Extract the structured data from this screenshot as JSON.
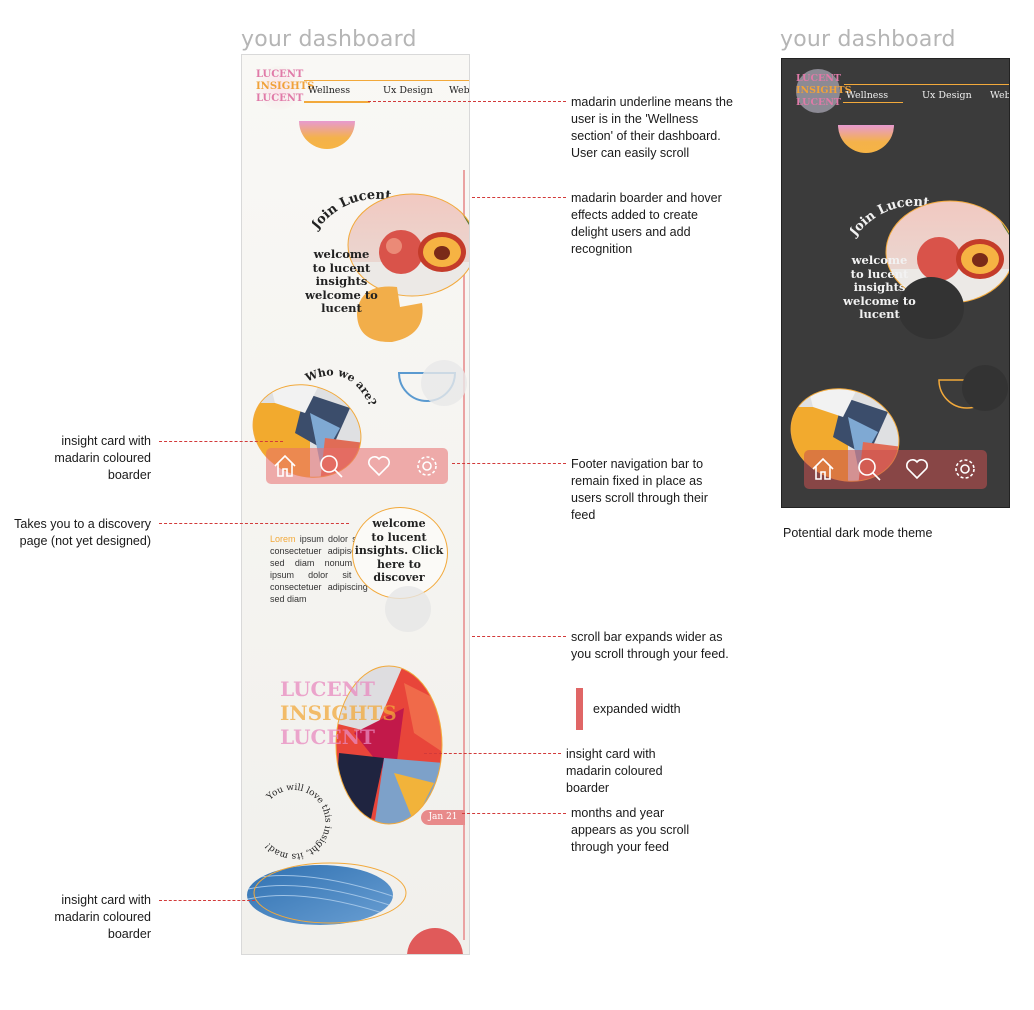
{
  "headings": {
    "light": "your dashboard",
    "dark": "your dashboard"
  },
  "phone": {
    "logo_lines": [
      "LUCENT",
      "INSIGHTS",
      "LUCENT"
    ],
    "tabs": [
      "Wellness",
      "Ux Design",
      "Web"
    ],
    "active_tab": "Wellness",
    "join_label": "Join Lucent",
    "welcome_lines": [
      "welcome",
      "to lucent",
      "insights",
      "welcome to",
      "lucent"
    ],
    "who_label": "Who we are?",
    "discover_lines": [
      "welcome",
      "to lucent",
      "insights. Click",
      "here to",
      "discover"
    ],
    "lorem_highlight": "Lorem",
    "lorem_body": "ipsum dolor sit amet, consectetuer adipiscing elit, sed diam nonum Lorem ipsum dolor sit amet, consectetuer adipiscing elit, sed diam",
    "curved_phrase": "You will love this insight, its mad!",
    "date_chip": "Jan 21",
    "nav_icons": [
      "home-icon",
      "search-icon",
      "heart-icon",
      "settings-icon"
    ]
  },
  "annotations": {
    "underline": "madarin underline means the user is in the 'Wellness section' of their dashboard. User can easily scroll",
    "border": "madarin boarder and hover effects added to create delight users and add recognition",
    "insight1": "insight card with madarin coloured boarder",
    "footer": "Footer navigation bar to remain fixed in place as users scroll through their feed",
    "discovery": "Takes you to a discovery page (not yet designed)",
    "scrollbar": "scroll bar expands wider as you scroll through your feed.",
    "expanded": "expanded width",
    "insight2": "insight card with madarin coloured boarder",
    "months": "months and year appears as you scroll through your feed",
    "insight3": "insight card with madarin coloured boarder",
    "dark_mode": "Potential dark mode theme"
  },
  "colors": {
    "mandarin": "#f2a93b",
    "coral": "#e06666",
    "annotation_line": "#d23a3a"
  }
}
